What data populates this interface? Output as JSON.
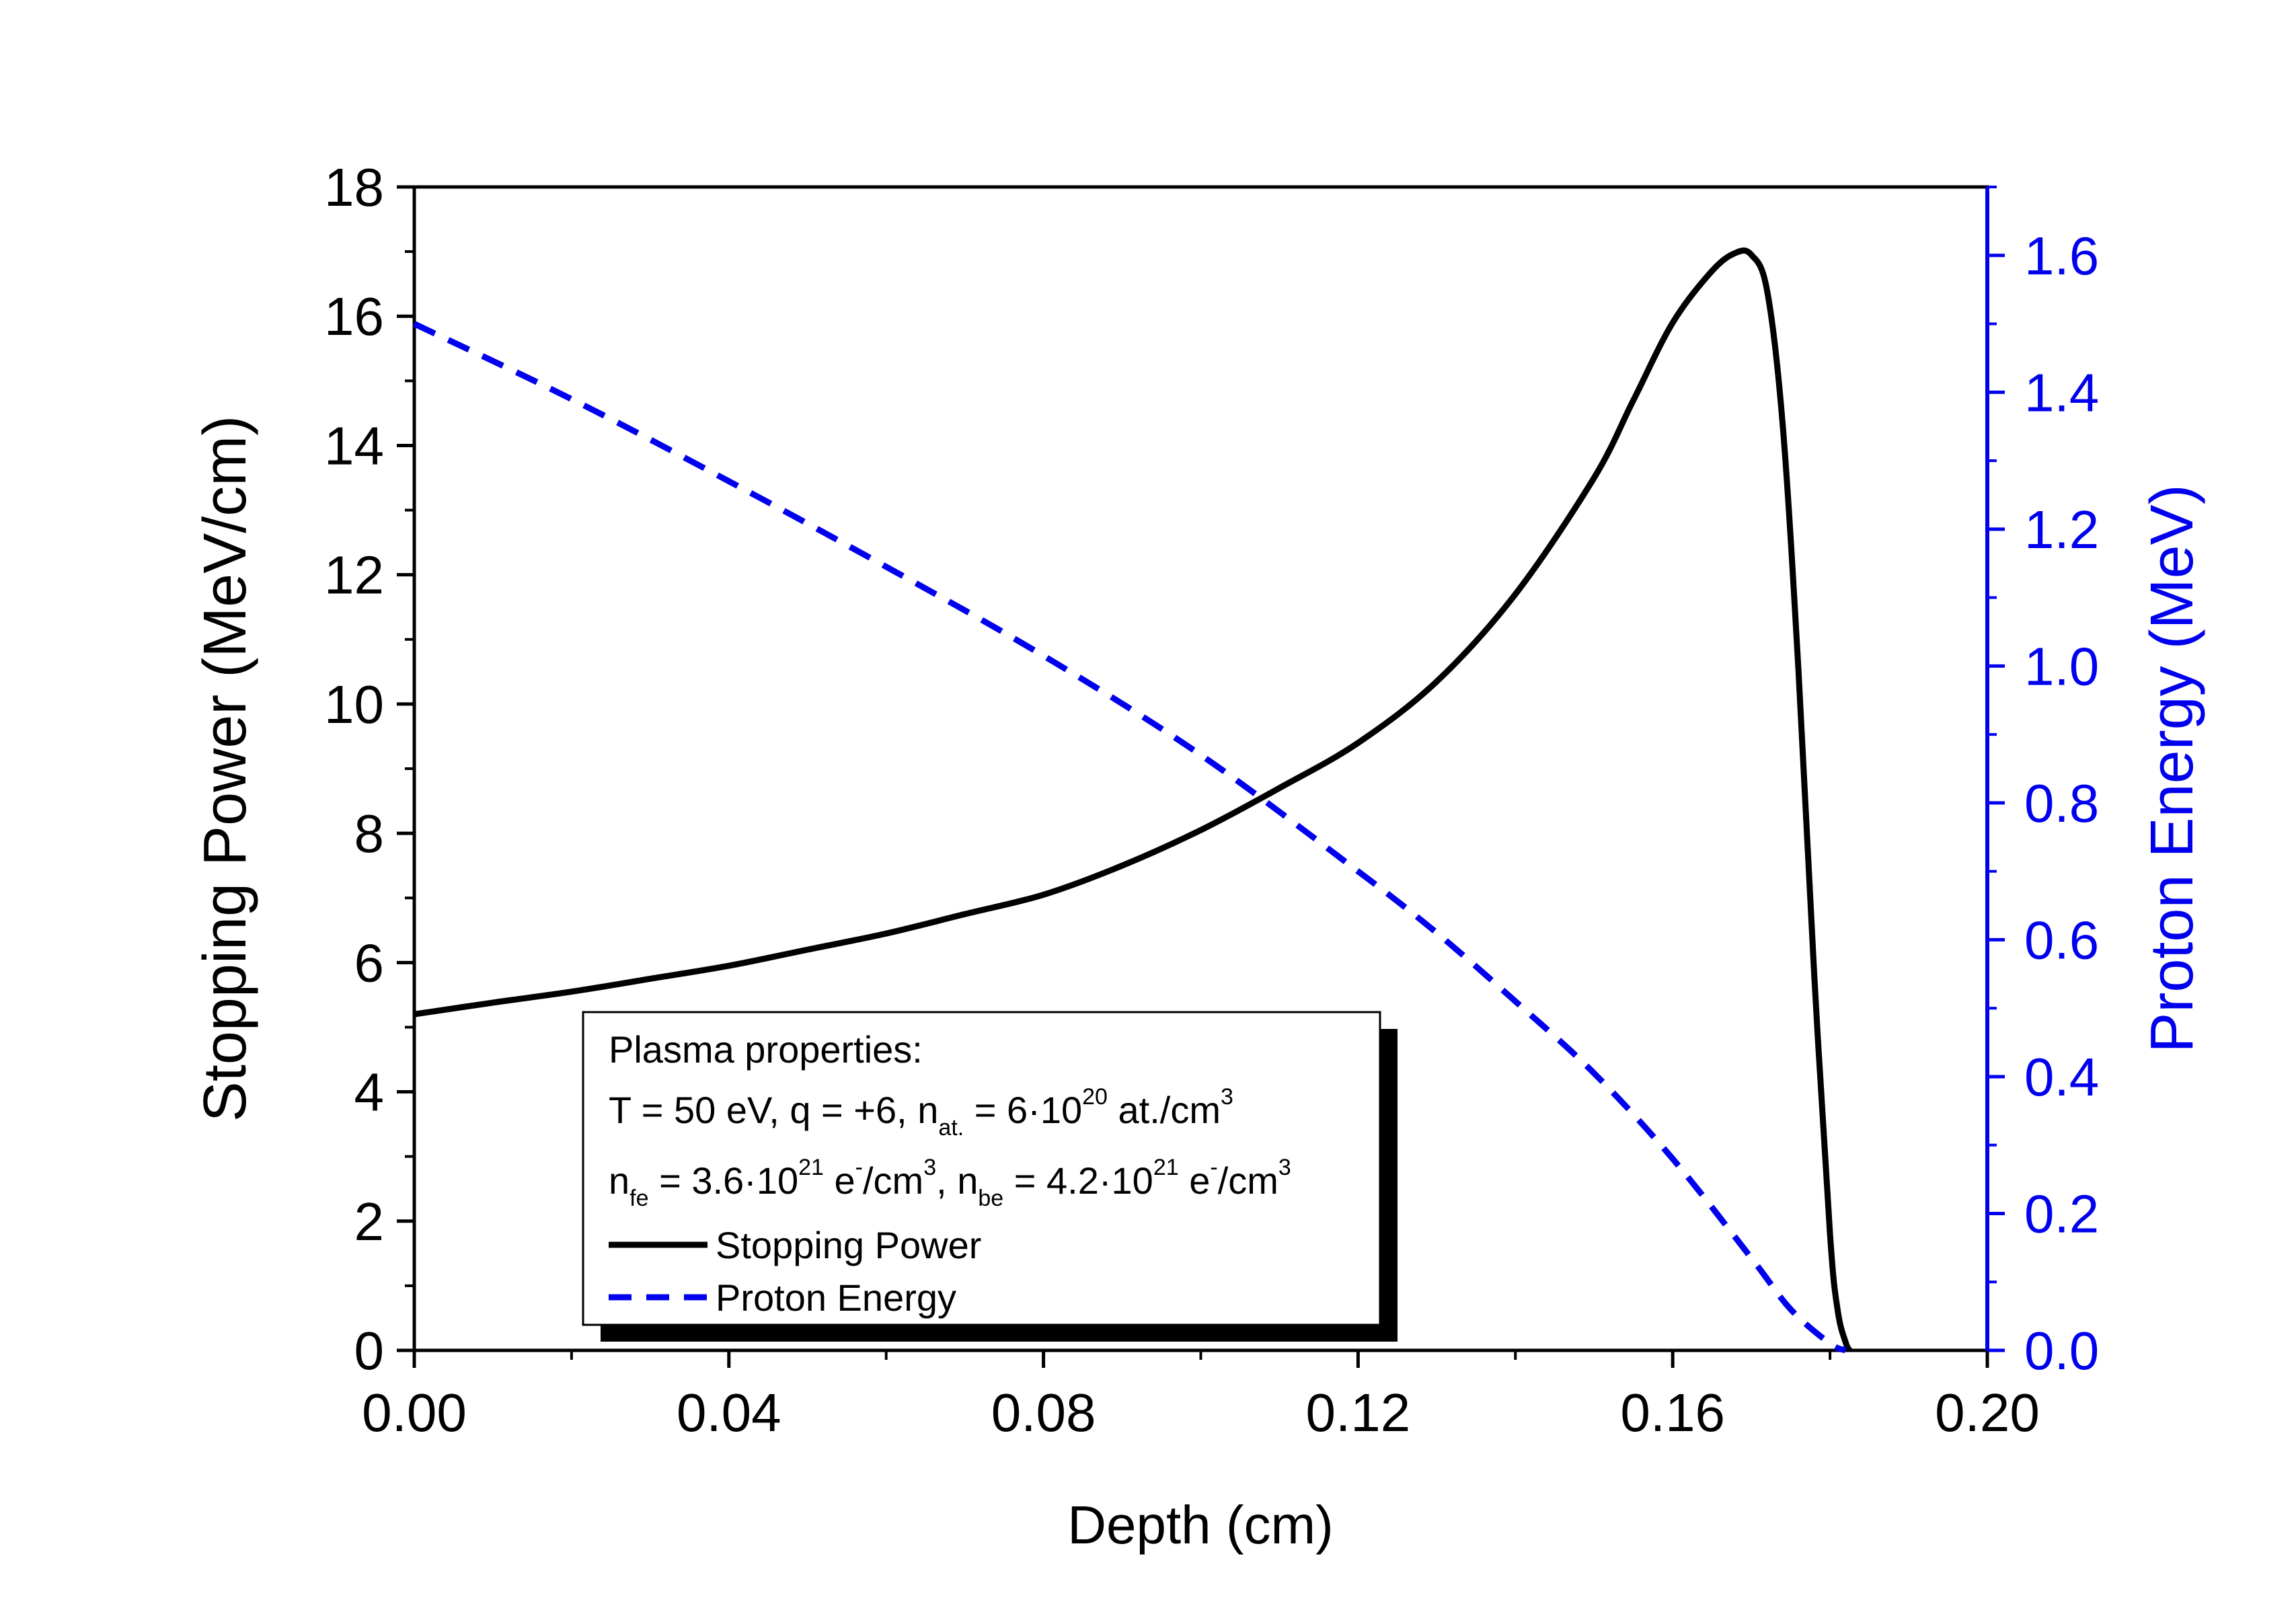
{
  "chart_data": {
    "type": "line",
    "title": "",
    "xlabel": "Depth (cm)",
    "ylabel_left": "Stopping Power (MeV/cm)",
    "ylabel_right": "Proton Energy (MeV)",
    "xlim": [
      0.0,
      0.2
    ],
    "ylim_left": [
      0,
      18
    ],
    "ylim_right": [
      0.0,
      1.7
    ],
    "x_ticks": [
      "0.00",
      "0.04",
      "0.08",
      "0.12",
      "0.16",
      "0.20"
    ],
    "x_tick_values": [
      0.0,
      0.04,
      0.08,
      0.12,
      0.16,
      0.2
    ],
    "y_left_ticks": [
      "0",
      "2",
      "4",
      "6",
      "8",
      "10",
      "12",
      "14",
      "16",
      "18"
    ],
    "y_left_tick_values": [
      0,
      2,
      4,
      6,
      8,
      10,
      12,
      14,
      16,
      18
    ],
    "y_right_ticks": [
      "0.0",
      "0.2",
      "0.4",
      "0.6",
      "0.8",
      "1.0",
      "1.2",
      "1.4",
      "1.6"
    ],
    "y_right_tick_values": [
      0.0,
      0.2,
      0.4,
      0.6,
      0.8,
      1.0,
      1.2,
      1.4,
      1.6
    ],
    "grid": false,
    "legend_position": "bottom-left",
    "series": [
      {
        "name": "Stopping Power",
        "axis": "left",
        "style": "solid",
        "color": "#000000",
        "x": [
          0.0,
          0.01,
          0.02,
          0.03,
          0.04,
          0.05,
          0.06,
          0.07,
          0.08,
          0.09,
          0.1,
          0.11,
          0.12,
          0.13,
          0.14,
          0.15,
          0.155,
          0.16,
          0.165,
          0.168,
          0.17,
          0.172,
          0.174,
          0.176,
          0.178,
          0.18,
          0.181,
          0.182,
          0.1825
        ],
        "y": [
          5.2,
          5.38,
          5.55,
          5.75,
          5.95,
          6.2,
          6.45,
          6.75,
          7.05,
          7.5,
          8.05,
          8.7,
          9.4,
          10.35,
          11.7,
          13.5,
          14.7,
          15.9,
          16.7,
          16.98,
          16.95,
          16.4,
          14.3,
          10.5,
          5.8,
          1.8,
          0.6,
          0.12,
          0.0
        ]
      },
      {
        "name": "Proton Energy",
        "axis": "right",
        "style": "dashed",
        "color": "#0000ee",
        "x": [
          0.0,
          0.02,
          0.04,
          0.06,
          0.08,
          0.1,
          0.12,
          0.13,
          0.14,
          0.15,
          0.16,
          0.17,
          0.175,
          0.18,
          0.182
        ],
        "y": [
          1.5,
          1.39,
          1.27,
          1.145,
          1.015,
          0.87,
          0.7,
          0.61,
          0.51,
          0.405,
          0.28,
          0.135,
          0.06,
          0.01,
          0.0
        ]
      }
    ],
    "legend_box": {
      "heading": "Plasma properties:",
      "line1": {
        "a": "T = 50 eV, q = +6, n",
        "sub1": "at.",
        "b": " = 6·10",
        "sup1": "20",
        "c": " at./cm",
        "sup2": "3"
      },
      "line2": {
        "a": "n",
        "sub1": "fe",
        "b": " = 3.6·10",
        "sup1": "21",
        "c": " e",
        "sup2": "-",
        "d": "/cm",
        "sup3": "3",
        "e": ", n",
        "sub2": "be",
        "f": " = 4.2·10",
        "sup4": "21",
        "g": " e",
        "sup5": "-",
        "h": "/cm",
        "sup6": "3"
      },
      "entries": [
        "Stopping Power",
        "Proton Energy"
      ]
    },
    "colors": {
      "left_axis": "#000000",
      "right_axis": "#0000ee"
    }
  }
}
